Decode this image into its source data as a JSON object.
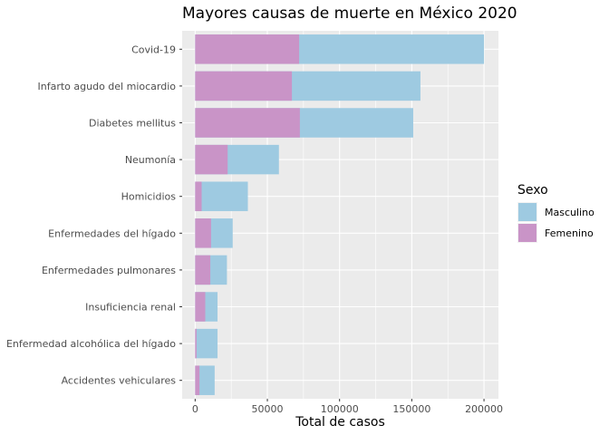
{
  "chart_data": {
    "type": "bar",
    "orientation": "horizontal",
    "stacked": false,
    "title": "Mayores causas de muerte en México 2020",
    "xlabel": "Total de casos",
    "ylabel": "",
    "xlim": [
      -9000,
      210000
    ],
    "x_ticks": [
      0,
      50000,
      100000,
      150000,
      200000
    ],
    "x_tick_labels": [
      "0",
      "50000",
      "100000",
      "150000",
      "200000"
    ],
    "grid": true,
    "categories": [
      "Covid-19",
      "Infarto agudo del miocardio",
      "Diabetes mellitus",
      "Neumonía",
      "Homicidios",
      "Enfermedades del hígado",
      "Enfermedades pulmonares",
      "Insuficiencia renal",
      "Enfermedad alcohólica del hígado",
      "Accidentes vehiculares"
    ],
    "series": [
      {
        "name": "Masculino",
        "color": "#9ecae1",
        "values": [
          200000,
          156000,
          151000,
          58000,
          36500,
          26000,
          22000,
          15500,
          15500,
          13500
        ]
      },
      {
        "name": "Femenino",
        "color": "#c994c7",
        "values": [
          72000,
          67000,
          72500,
          22500,
          4500,
          11000,
          10500,
          7000,
          1000,
          3000
        ]
      }
    ],
    "legend": {
      "title": "Sexo",
      "position": "right"
    }
  }
}
